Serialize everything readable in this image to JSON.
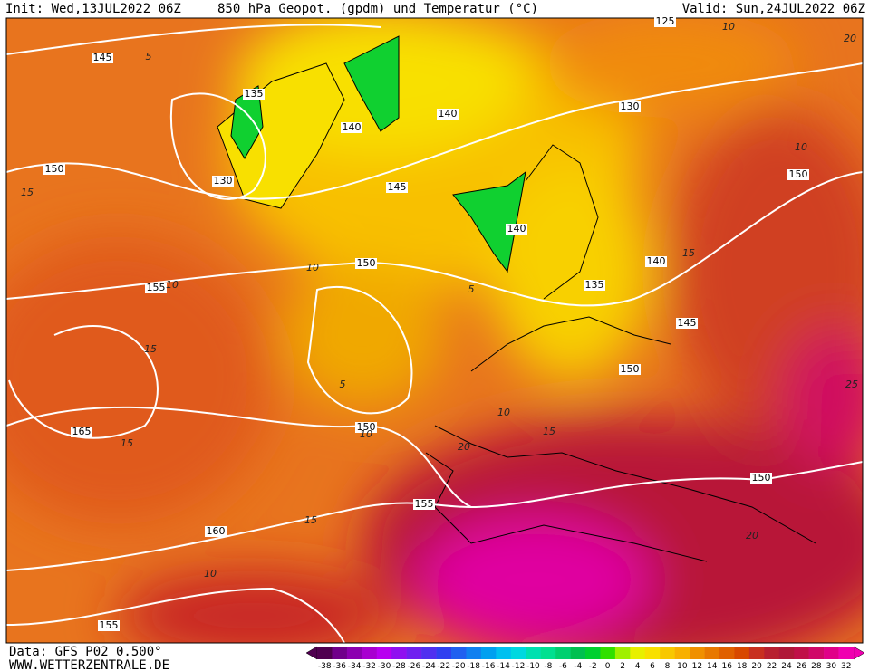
{
  "header": {
    "init": "Init: Wed,13JUL2022 06Z",
    "title": "850 hPa Geopot. (gpdm) und Temperatur (°C)",
    "valid": "Valid: Sun,24JUL2022 06Z"
  },
  "footer": {
    "data": "Data: GFS P02 0.500°",
    "site": "WWW.WETTERZENTRALE.DE"
  },
  "map": {
    "geopotential_labels": [
      "145",
      "150",
      "135",
      "130",
      "140",
      "145",
      "140",
      "125",
      "130",
      "150",
      "140",
      "140",
      "135",
      "150",
      "155",
      "145",
      "150",
      "165",
      "150",
      "155",
      "150",
      "160",
      "155"
    ],
    "temperature_labels": [
      "10",
      "20",
      "5",
      "5",
      "10",
      "15",
      "10",
      "10",
      "15",
      "15",
      "20",
      "25",
      "15",
      "20",
      "10",
      "15",
      "10",
      "5",
      "10",
      "15"
    ]
  },
  "colorbar": {
    "labels": [
      -38,
      -36,
      -34,
      -32,
      -30,
      -28,
      -26,
      -24,
      -22,
      -20,
      -18,
      -16,
      -14,
      -12,
      -10,
      -8,
      -6,
      -4,
      -2,
      0,
      2,
      4,
      6,
      8,
      10,
      12,
      14,
      16,
      18,
      20,
      22,
      24,
      26,
      28,
      30,
      32
    ],
    "colors": [
      "#500050",
      "#70008a",
      "#8c00b0",
      "#a800d0",
      "#b800f0",
      "#9010f0",
      "#7020f0",
      "#5030f0",
      "#3040f0",
      "#2060f0",
      "#1080f0",
      "#00a0f0",
      "#00c0f0",
      "#00d8e0",
      "#00e0b0",
      "#00e090",
      "#00d070",
      "#00c050",
      "#00d030",
      "#30e000",
      "#a0f000",
      "#e8f000",
      "#f8e000",
      "#f8c800",
      "#f8b000",
      "#f09000",
      "#e87800",
      "#e06000",
      "#d84800",
      "#c83020",
      "#b82030",
      "#b01838",
      "#c01048",
      "#d00868",
      "#e00088",
      "#f000b0"
    ]
  }
}
